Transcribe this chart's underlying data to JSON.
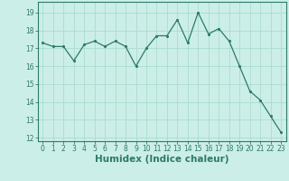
{
  "title": "",
  "xlabel": "Humidex (Indice chaleur)",
  "ylabel": "",
  "x": [
    0,
    1,
    2,
    3,
    4,
    5,
    6,
    7,
    8,
    9,
    10,
    11,
    12,
    13,
    14,
    15,
    16,
    17,
    18,
    19,
    20,
    21,
    22,
    23
  ],
  "y": [
    17.3,
    17.1,
    17.1,
    16.3,
    17.2,
    17.4,
    17.1,
    17.4,
    17.1,
    16.0,
    17.0,
    17.7,
    17.7,
    18.6,
    17.3,
    19.0,
    17.8,
    18.1,
    17.4,
    16.0,
    14.6,
    14.1,
    13.2,
    12.3
  ],
  "line_color": "#2d7a6a",
  "marker_color": "#2d7a6a",
  "bg_color": "#cceee8",
  "grid_color": "#aaddcc",
  "ylim": [
    11.8,
    19.6
  ],
  "yticks": [
    12,
    13,
    14,
    15,
    16,
    17,
    18,
    19
  ],
  "xticks": [
    0,
    1,
    2,
    3,
    4,
    5,
    6,
    7,
    8,
    9,
    10,
    11,
    12,
    13,
    14,
    15,
    16,
    17,
    18,
    19,
    20,
    21,
    22,
    23
  ],
  "tick_fontsize": 5.5,
  "xlabel_fontsize": 7.5,
  "xlabel_fontweight": "bold"
}
